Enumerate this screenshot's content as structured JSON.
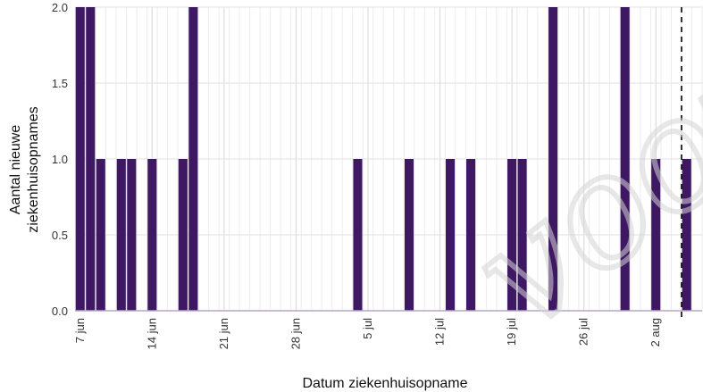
{
  "chart_data": {
    "type": "bar",
    "xlabel": "Datum ziekenhuisopname",
    "ylabel_lines": [
      "Aantal nieuwe",
      "ziekenhuisopnames"
    ],
    "ylim": [
      0,
      2.0
    ],
    "yticks": [
      0.0,
      0.5,
      1.0,
      1.5,
      2.0
    ],
    "ytick_labels": [
      "0.0",
      "0.5",
      "1.0",
      "1.5",
      "2.0"
    ],
    "x_start": "2020-06-07",
    "x_end": "2020-08-06",
    "xticks": [
      {
        "date": "2020-06-07",
        "label": "7 jun"
      },
      {
        "date": "2020-06-14",
        "label": "14 jun"
      },
      {
        "date": "2020-06-21",
        "label": "21 jun"
      },
      {
        "date": "2020-06-28",
        "label": "28 jun"
      },
      {
        "date": "2020-07-05",
        "label": "5 jul"
      },
      {
        "date": "2020-07-12",
        "label": "12 jul"
      },
      {
        "date": "2020-07-19",
        "label": "19 jul"
      },
      {
        "date": "2020-07-26",
        "label": "26 jul"
      },
      {
        "date": "2020-08-02",
        "label": "2 aug"
      }
    ],
    "bars": [
      {
        "date": "2020-06-07",
        "value": 2
      },
      {
        "date": "2020-06-08",
        "value": 2
      },
      {
        "date": "2020-06-09",
        "value": 1
      },
      {
        "date": "2020-06-11",
        "value": 1
      },
      {
        "date": "2020-06-12",
        "value": 1
      },
      {
        "date": "2020-06-14",
        "value": 1
      },
      {
        "date": "2020-06-17",
        "value": 1
      },
      {
        "date": "2020-06-18",
        "value": 2
      },
      {
        "date": "2020-07-04",
        "value": 1
      },
      {
        "date": "2020-07-09",
        "value": 1
      },
      {
        "date": "2020-07-13",
        "value": 1
      },
      {
        "date": "2020-07-15",
        "value": 1
      },
      {
        "date": "2020-07-19",
        "value": 1
      },
      {
        "date": "2020-07-20",
        "value": 1
      },
      {
        "date": "2020-07-23",
        "value": 2
      },
      {
        "date": "2020-07-30",
        "value": 2
      },
      {
        "date": "2020-08-02",
        "value": 1
      },
      {
        "date": "2020-08-05",
        "value": 1
      }
    ],
    "reference_line": {
      "date": "2020-08-05",
      "style": "dashed",
      "color": "#000000"
    },
    "grid": true,
    "bar_color": "#3f1864",
    "watermark_text": "voorlopig"
  }
}
